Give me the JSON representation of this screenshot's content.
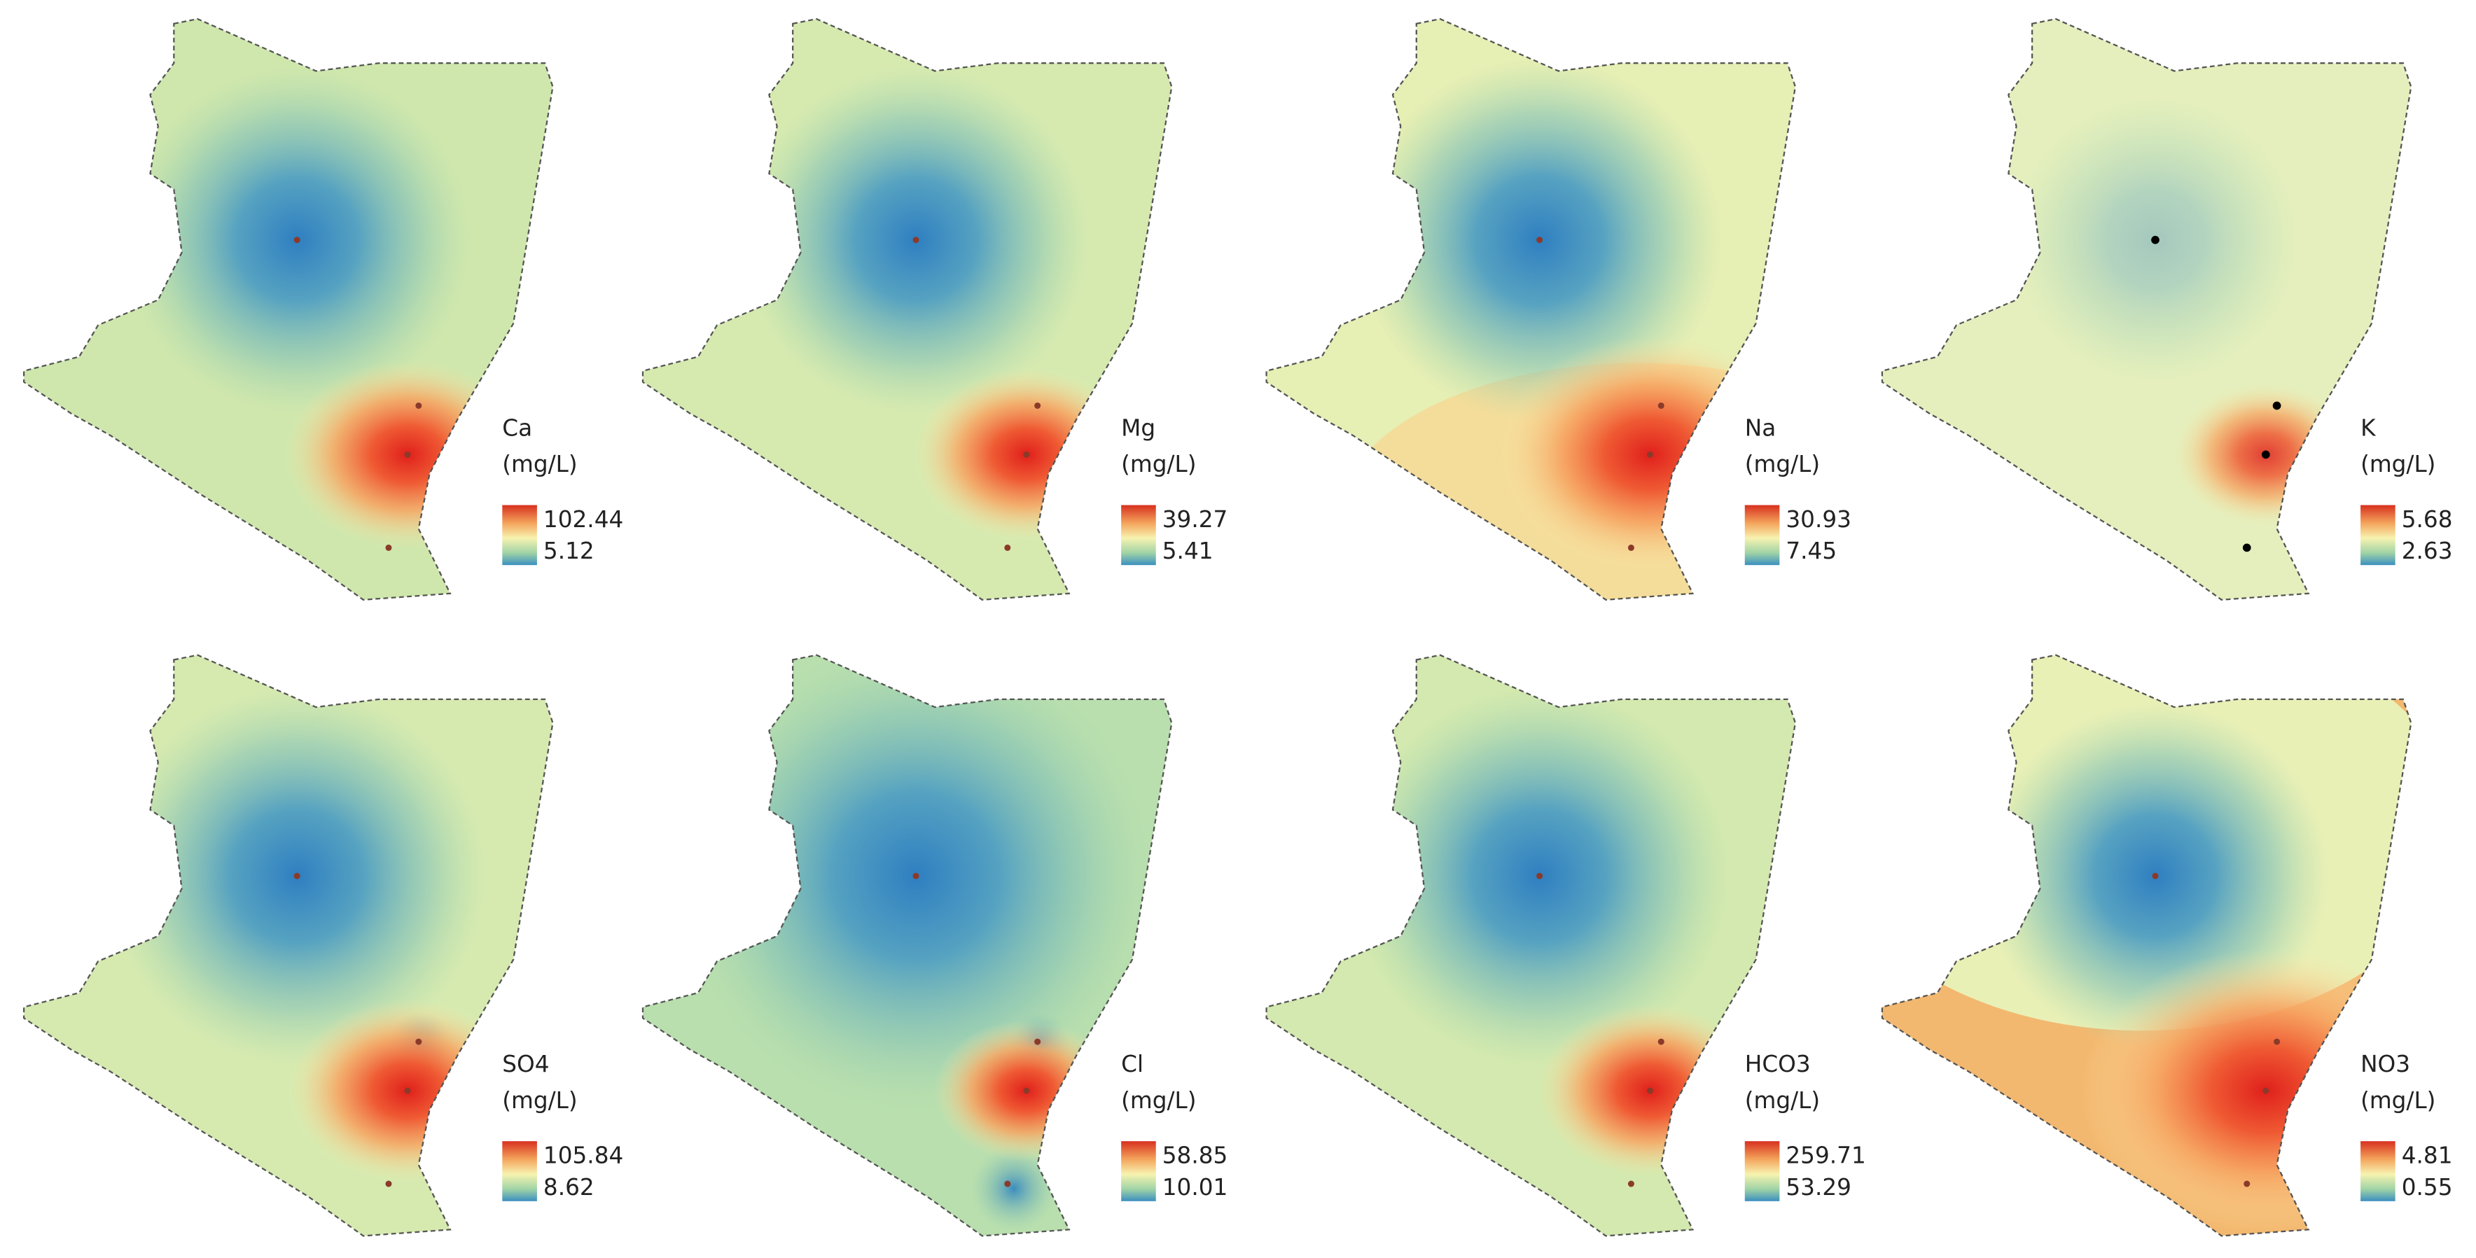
{
  "maps": [
    {
      "parameter": "Ca",
      "unit": "(mg/L)",
      "max": 102.44,
      "min": 5.12
    },
    {
      "parameter": "Mg",
      "unit": "(mg/L)",
      "max": 39.27,
      "min": 5.41
    },
    {
      "parameter": "Na",
      "unit": "(mg/L)",
      "max": 30.93,
      "min": 7.45
    },
    {
      "parameter": "K",
      "unit": "(mg/L)",
      "max": 5.68,
      "min": 2.63
    },
    {
      "parameter": "SO4",
      "unit": "(mg/L)",
      "max": 105.84,
      "min": 8.62
    },
    {
      "parameter": "Cl",
      "unit": "(mg/L)",
      "max": 58.85,
      "min": 10.01
    },
    {
      "parameter": "HCO3",
      "unit": "(mg/L)",
      "max": 259.71,
      "min": 53.29
    },
    {
      "parameter": "NO3",
      "unit": "(mg/L)",
      "max": 4.81,
      "min": 0.55
    }
  ]
}
